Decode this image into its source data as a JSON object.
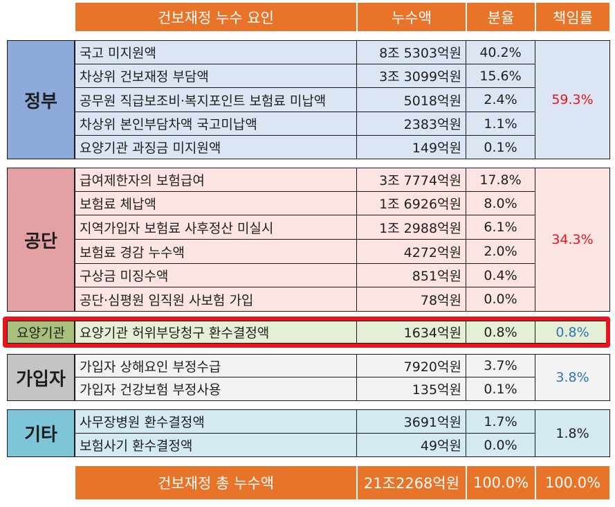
{
  "header": {
    "cause": "건보재정 누수 요인",
    "amount": "누수액",
    "share": "분율",
    "responsibility": "책임률"
  },
  "groups": {
    "government": {
      "name": "정부",
      "responsibility": "59.3%",
      "rows": [
        {
          "label": "국고 미지원액",
          "amount": "8조 5303억원",
          "share": "40.2%"
        },
        {
          "label": "차상위 건보재정 부담액",
          "amount": "3조 3099억원",
          "share": "15.6%"
        },
        {
          "label": "공무원 직급보조비·복지포인트 보험료 미납액",
          "amount": "5018억원",
          "share": "2.4%"
        },
        {
          "label": "차상위 본인부담차액 국고미납액",
          "amount": "2383억원",
          "share": "1.1%"
        },
        {
          "label": "요양기관 과징금 미지원액",
          "amount": "149억원",
          "share": "0.1%"
        }
      ]
    },
    "corporation": {
      "name": "공단",
      "responsibility": "34.3%",
      "rows": [
        {
          "label": "급여제한자의 보험급여",
          "amount": "3조 7774억원",
          "share": "17.8%"
        },
        {
          "label": "보험료 체납액",
          "amount": "1조 6926억원",
          "share": "8.0%"
        },
        {
          "label": "지역가입자 보험료 사후정산 미실시",
          "amount": "1조 2988억원",
          "share": "6.1%"
        },
        {
          "label": "보험료 경감 누수액",
          "amount": "4272억원",
          "share": "2.0%"
        },
        {
          "label": "구상금 미징수액",
          "amount": "851억원",
          "share": "0.4%"
        },
        {
          "label": "공단·심평원 임직원 사보험 가입",
          "amount": "78억원",
          "share": "0.0%"
        }
      ]
    },
    "provider": {
      "name": "요양기관",
      "responsibility": "0.8%",
      "rows": [
        {
          "label": "요양기관 허위부당청구 환수결정액",
          "amount": "1634억원",
          "share": "0.8%"
        }
      ]
    },
    "subscriber": {
      "name": "가입자",
      "responsibility": "3.8%",
      "rows": [
        {
          "label": "가입자 상해요인 부정수급",
          "amount": "7920억원",
          "share": "3.7%"
        },
        {
          "label": "가입자 건강보험 부정사용",
          "amount": "135억원",
          "share": "0.1%"
        }
      ]
    },
    "other": {
      "name": "기타",
      "responsibility": "1.8%",
      "rows": [
        {
          "label": "사무장병원 환수결정액",
          "amount": "3691억원",
          "share": "1.7%"
        },
        {
          "label": "보험사기 환수결정액",
          "amount": "49억원",
          "share": "0.0%"
        }
      ]
    }
  },
  "total": {
    "label": "건보재정 총 누수액",
    "amount": "21조2268억원",
    "share": "100.0%",
    "responsibility": "100.0%"
  },
  "colors": {
    "header_orange": "#e8742a",
    "government_group": "#8eaadb",
    "government_rows": "#dbe5f4",
    "corporation_group": "#e3a1a3",
    "corporation_rows": "#fbe4e2",
    "provider_group": "#a9c07a",
    "provider_rows": "#e4efd6",
    "subscriber_group": "#c4c4c4",
    "subscriber_rows": "#f2f2f2",
    "other_group": "#7fc5d8",
    "other_rows": "#d3eaf2",
    "highlight_red": "#e8131b",
    "responsibility_red": "#e8131b",
    "responsibility_blue": "#2f75b5"
  }
}
